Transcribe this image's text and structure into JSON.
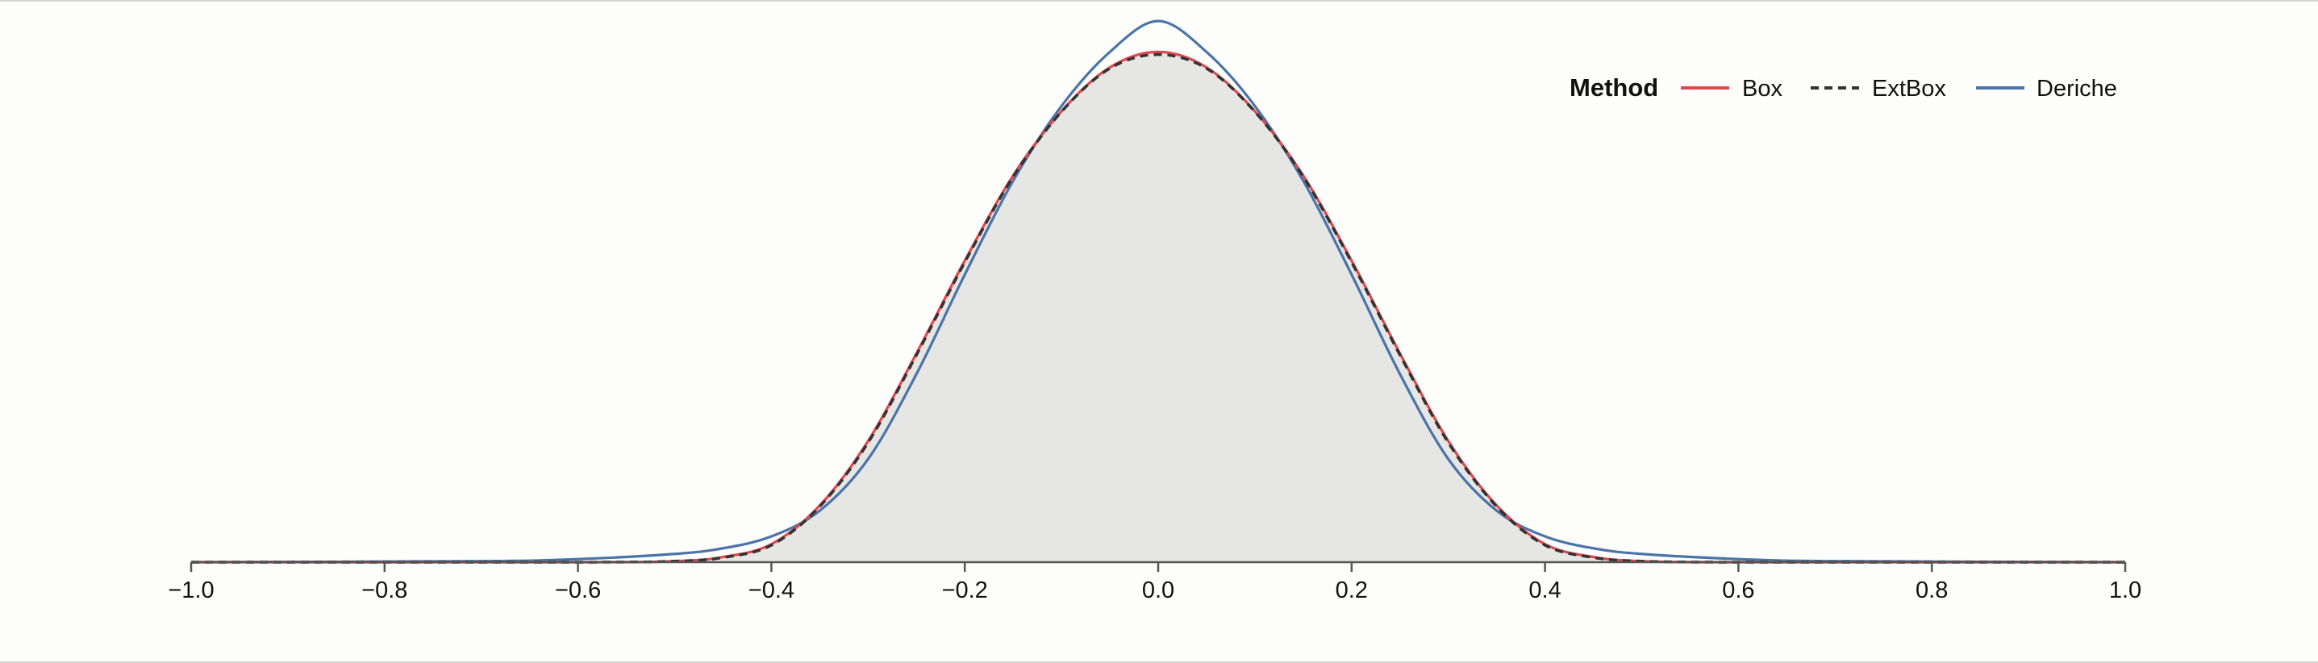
{
  "chart_data": {
    "type": "area",
    "title": "",
    "xlabel": "",
    "ylabel": "",
    "xlim": [
      -1.0,
      1.0
    ],
    "ylim": [
      0,
      1.0
    ],
    "grid": false,
    "x_ticks": [
      -1.0,
      -0.8,
      -0.6,
      -0.4,
      -0.2,
      0.0,
      0.2,
      0.4,
      0.6,
      0.8,
      1.0
    ],
    "x_tick_labels": [
      "−1.0",
      "−0.8",
      "−0.6",
      "−0.4",
      "−0.2",
      "0.0",
      "0.2",
      "0.4",
      "0.6",
      "0.8",
      "1.0"
    ],
    "legend": {
      "title": "Method",
      "placement": "top-right",
      "entries": [
        {
          "label": "Box",
          "color": "#e0474c",
          "dash": "solid"
        },
        {
          "label": "ExtBox",
          "color": "#333333",
          "dash": "dashed"
        },
        {
          "label": "Deriche",
          "color": "#4a74a8",
          "dash": "solid"
        }
      ]
    },
    "fill_color": "#e6e6e4",
    "series": [
      {
        "name": "Box",
        "color": "#e0474c",
        "x": [
          -1.0,
          -0.6,
          -0.5,
          -0.45,
          -0.4,
          -0.35,
          -0.3,
          -0.25,
          -0.2,
          -0.15,
          -0.1,
          -0.05,
          0.0,
          0.05,
          0.1,
          0.15,
          0.2,
          0.25,
          0.3,
          0.35,
          0.4,
          0.45,
          0.5,
          0.6,
          1.0
        ],
        "y": [
          0.0,
          0.0,
          0.002,
          0.01,
          0.035,
          0.11,
          0.235,
          0.405,
          0.585,
          0.75,
          0.875,
          0.96,
          0.99,
          0.96,
          0.875,
          0.75,
          0.585,
          0.405,
          0.235,
          0.11,
          0.035,
          0.01,
          0.002,
          0.0,
          0.0
        ]
      },
      {
        "name": "ExtBox",
        "color": "#333333",
        "x": [
          -1.0,
          -0.6,
          -0.5,
          -0.45,
          -0.4,
          -0.35,
          -0.3,
          -0.25,
          -0.2,
          -0.15,
          -0.1,
          -0.05,
          0.0,
          0.05,
          0.1,
          0.15,
          0.2,
          0.25,
          0.3,
          0.35,
          0.4,
          0.45,
          0.5,
          0.6,
          1.0
        ],
        "y": [
          0.0,
          0.0,
          0.002,
          0.009,
          0.033,
          0.108,
          0.232,
          0.402,
          0.582,
          0.748,
          0.874,
          0.958,
          0.985,
          0.958,
          0.874,
          0.748,
          0.582,
          0.402,
          0.232,
          0.108,
          0.033,
          0.009,
          0.002,
          0.0,
          0.0
        ]
      },
      {
        "name": "Deriche",
        "color": "#4a74a8",
        "x": [
          -1.0,
          -0.7,
          -0.6,
          -0.5,
          -0.45,
          -0.4,
          -0.35,
          -0.3,
          -0.25,
          -0.2,
          -0.15,
          -0.1,
          -0.05,
          0.0,
          0.05,
          0.1,
          0.15,
          0.2,
          0.25,
          0.3,
          0.35,
          0.4,
          0.45,
          0.5,
          0.6,
          0.7,
          1.0
        ],
        "y": [
          0.0,
          0.002,
          0.006,
          0.016,
          0.027,
          0.05,
          0.1,
          0.2,
          0.365,
          0.558,
          0.74,
          0.885,
          0.99,
          1.05,
          0.99,
          0.885,
          0.74,
          0.558,
          0.365,
          0.2,
          0.1,
          0.05,
          0.027,
          0.016,
          0.006,
          0.002,
          0.0
        ]
      }
    ]
  }
}
